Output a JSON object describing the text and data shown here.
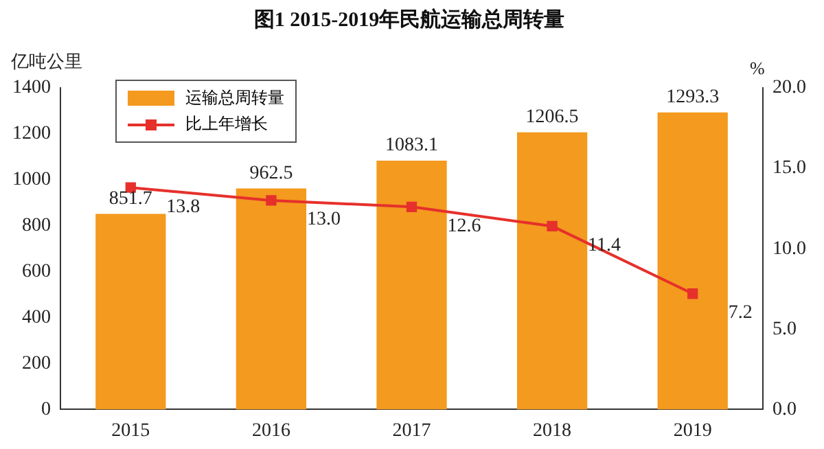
{
  "chart_data": {
    "type": "bar",
    "title": "图1 2015-2019年民航运输总周转量",
    "ylabel": "亿吨公里",
    "y2label": "%",
    "categories": [
      "2015",
      "2016",
      "2017",
      "2018",
      "2019"
    ],
    "series": [
      {
        "name": "运输总周转量",
        "color": "#f39a1f",
        "values": [
          851.7,
          962.5,
          1083.1,
          1206.5,
          1293.3
        ],
        "value_labels": [
          "851.7",
          "962.5",
          "1083.1",
          "1206.5",
          "1293.3"
        ]
      },
      {
        "name": "比上年增长",
        "type": "line",
        "axis": "y2",
        "color": "#e6302b",
        "marker": "square",
        "values": [
          13.8,
          13.0,
          12.6,
          11.4,
          7.2
        ],
        "value_labels": [
          "13.8",
          "13.0",
          "12.6",
          "11.4",
          "7.2"
        ]
      }
    ],
    "ylim": [
      0,
      1400
    ],
    "yticks": [
      0,
      200,
      400,
      600,
      800,
      1000,
      1200,
      1400
    ],
    "y2lim": [
      0,
      20
    ],
    "y2ticks": [
      {
        "value": 0,
        "label": "0.0"
      },
      {
        "value": 5,
        "label": "5.0"
      },
      {
        "value": 10,
        "label": "10.0"
      },
      {
        "value": 15,
        "label": "15.0"
      },
      {
        "value": 20,
        "label": "20.0"
      }
    ],
    "grid": false,
    "legend": "top left"
  }
}
